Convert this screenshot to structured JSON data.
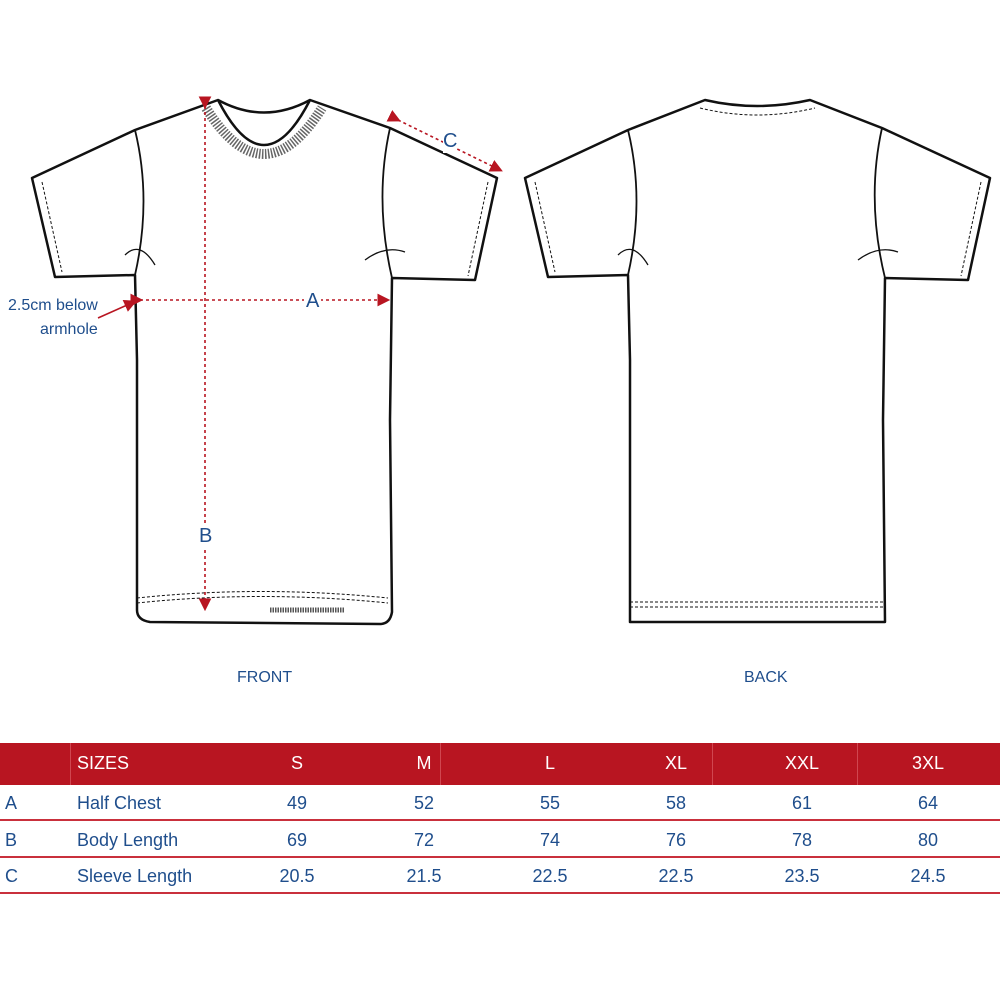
{
  "diagram": {
    "front_label": "FRONT",
    "back_label": "BACK",
    "measure_a": "A",
    "measure_b": "B",
    "measure_c": "C",
    "note_line1": "2.5cm below",
    "note_line2": "armhole",
    "accent_color": "#b81521",
    "text_color": "#1f4e8c"
  },
  "table": {
    "header": {
      "label": "SIZES",
      "sizes": [
        "S",
        "M",
        "L",
        "XL",
        "XXL",
        "3XL"
      ]
    },
    "rows": [
      {
        "key": "A",
        "name": "Half Chest",
        "values": [
          "49",
          "52",
          "55",
          "58",
          "61",
          "64"
        ]
      },
      {
        "key": "B",
        "name": "Body Length",
        "values": [
          "69",
          "72",
          "74",
          "76",
          "78",
          "80"
        ]
      },
      {
        "key": "C",
        "name": "Sleeve Length",
        "values": [
          "20.5",
          "21.5",
          "22.5",
          "22.5",
          "23.5",
          "24.5"
        ]
      }
    ]
  }
}
